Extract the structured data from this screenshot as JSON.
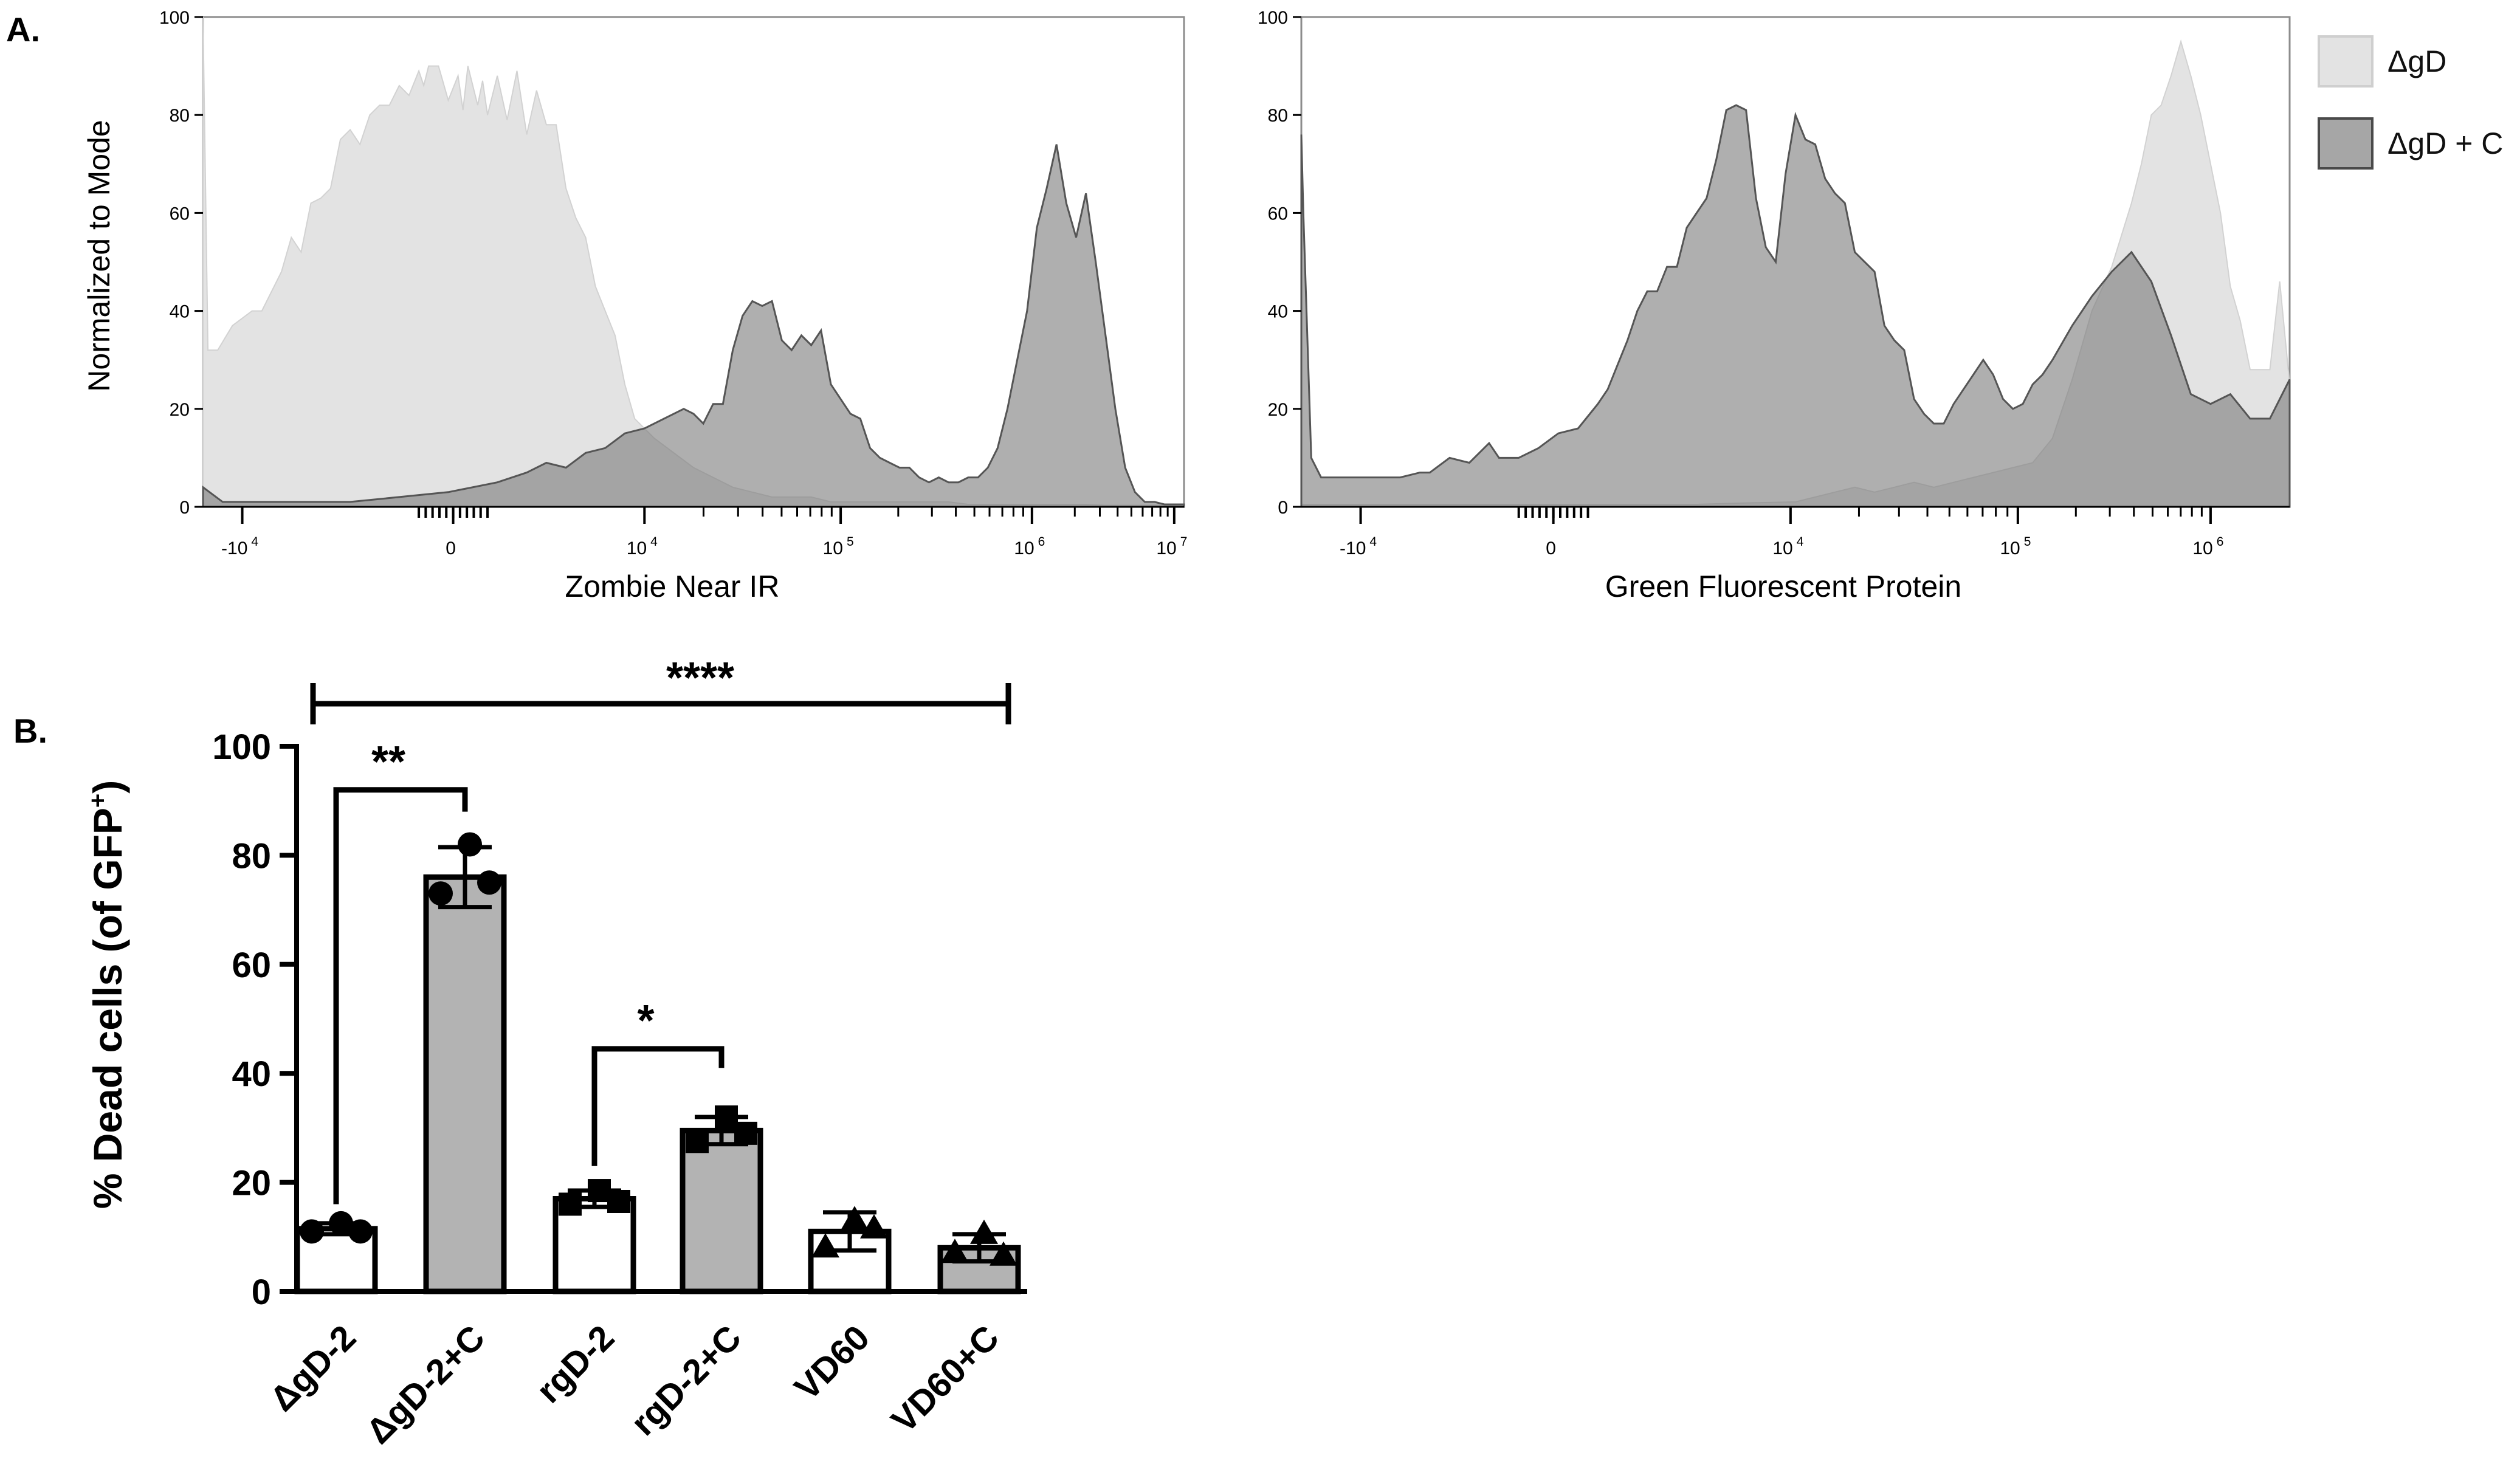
{
  "panel_labels": {
    "a": "A.",
    "b": "B."
  },
  "legend": [
    {
      "label": "ΔgD",
      "color": "#e3e3e3"
    },
    {
      "label": "ΔgD + C",
      "color": "#a6a6a6"
    }
  ],
  "chart_data": [
    {
      "type": "area",
      "title": "",
      "xlabel": "Zombie  Near IR",
      "ylabel": "Normalized to Mode",
      "ylim": [
        0,
        100
      ],
      "y_ticks": [
        "0",
        "20",
        "40",
        "60",
        "80",
        "100"
      ],
      "x_ticks": [
        {
          "base": "-10",
          "exp": "4",
          "pos": 0.04
        },
        {
          "base": "0",
          "exp": "",
          "pos": 0.255
        },
        {
          "base": "10",
          "exp": "4",
          "pos": 0.45
        },
        {
          "base": "10",
          "exp": "5",
          "pos": 0.65
        },
        {
          "base": "10",
          "exp": "6",
          "pos": 0.845
        },
        {
          "base": "10",
          "exp": "7",
          "pos": 0.99
        }
      ],
      "x_scale": "biexponential, axis positions 0–1",
      "series": [
        {
          "name": "ΔgD",
          "x": [
            0.0,
            0.005,
            0.015,
            0.03,
            0.05,
            0.06,
            0.08,
            0.09,
            0.1,
            0.11,
            0.12,
            0.13,
            0.14,
            0.15,
            0.16,
            0.17,
            0.18,
            0.19,
            0.2,
            0.21,
            0.22,
            0.225,
            0.23,
            0.24,
            0.25,
            0.26,
            0.265,
            0.27,
            0.28,
            0.285,
            0.29,
            0.3,
            0.31,
            0.32,
            0.33,
            0.34,
            0.35,
            0.36,
            0.37,
            0.38,
            0.39,
            0.4,
            0.41,
            0.42,
            0.43,
            0.44,
            0.46,
            0.48,
            0.5,
            0.52,
            0.54,
            0.56,
            0.58,
            0.6,
            0.62,
            0.64,
            0.66,
            0.68,
            0.7,
            0.72,
            0.74,
            0.76,
            0.78,
            0.8,
            0.82,
            0.84,
            0.86,
            0.88,
            0.9,
            0.92,
            0.94,
            0.96,
            0.98,
            1.0
          ],
          "y": [
            100,
            32,
            32,
            37,
            40,
            40,
            48,
            55,
            52,
            62,
            63,
            65,
            75,
            77,
            74,
            80,
            82,
            82,
            86,
            84,
            89,
            86,
            90,
            90,
            83,
            88,
            81,
            90,
            82,
            87,
            80,
            88,
            79,
            89,
            76,
            85,
            78,
            78,
            65,
            59,
            55,
            45,
            40,
            35,
            25,
            18,
            14,
            11,
            8,
            6,
            4,
            3,
            2,
            2,
            2,
            1,
            1,
            1,
            1,
            1,
            1,
            1,
            0.5,
            0.5,
            0.5,
            0.5,
            0.5,
            0.5,
            0.5,
            0.3,
            0.3,
            0.3,
            0.3,
            0.3
          ]
        },
        {
          "name": "ΔgD + C",
          "x": [
            0.0,
            0.02,
            0.05,
            0.1,
            0.15,
            0.2,
            0.25,
            0.3,
            0.33,
            0.35,
            0.37,
            0.39,
            0.41,
            0.43,
            0.45,
            0.47,
            0.49,
            0.5,
            0.51,
            0.52,
            0.53,
            0.54,
            0.55,
            0.56,
            0.57,
            0.58,
            0.59,
            0.6,
            0.61,
            0.62,
            0.63,
            0.64,
            0.65,
            0.66,
            0.67,
            0.68,
            0.69,
            0.7,
            0.71,
            0.72,
            0.73,
            0.74,
            0.75,
            0.76,
            0.77,
            0.78,
            0.79,
            0.8,
            0.81,
            0.82,
            0.83,
            0.84,
            0.85,
            0.86,
            0.87,
            0.88,
            0.89,
            0.9,
            0.91,
            0.92,
            0.93,
            0.94,
            0.95,
            0.96,
            0.97,
            0.98,
            0.99,
            1.0
          ],
          "y": [
            4,
            1,
            1,
            1,
            1,
            2,
            3,
            5,
            7,
            9,
            8,
            11,
            12,
            15,
            16,
            18,
            20,
            19,
            17,
            21,
            21,
            32,
            39,
            42,
            41,
            42,
            34,
            32,
            35,
            33,
            36,
            25,
            22,
            19,
            18,
            12,
            10,
            9,
            8,
            8,
            6,
            5,
            6,
            5,
            5,
            6,
            6,
            8,
            12,
            20,
            30,
            40,
            57,
            65,
            74,
            62,
            55,
            64,
            50,
            35,
            20,
            8,
            3,
            1,
            1,
            0.5,
            0.5,
            0.5
          ]
        }
      ]
    },
    {
      "type": "area",
      "title": "",
      "xlabel": "Green Fluorescent Protein",
      "ylabel": "",
      "ylim": [
        0,
        100
      ],
      "y_ticks": [
        "0",
        "20",
        "40",
        "60",
        "80",
        "100"
      ],
      "x_ticks": [
        {
          "base": "-10",
          "exp": "4",
          "pos": 0.06
        },
        {
          "base": "0",
          "exp": "",
          "pos": 0.255
        },
        {
          "base": "10",
          "exp": "4",
          "pos": 0.495
        },
        {
          "base": "10",
          "exp": "5",
          "pos": 0.725
        },
        {
          "base": "10",
          "exp": "6",
          "pos": 0.92
        }
      ],
      "x_scale": "biexponential, axis positions 0–1",
      "series": [
        {
          "name": "ΔgD",
          "x": [
            0.0,
            0.1,
            0.2,
            0.3,
            0.4,
            0.45,
            0.5,
            0.52,
            0.54,
            0.56,
            0.58,
            0.6,
            0.62,
            0.64,
            0.66,
            0.68,
            0.7,
            0.72,
            0.74,
            0.76,
            0.78,
            0.8,
            0.82,
            0.84,
            0.85,
            0.86,
            0.87,
            0.88,
            0.89,
            0.9,
            0.91,
            0.92,
            0.93,
            0.94,
            0.95,
            0.96,
            0.97,
            0.98,
            0.99,
            1.0
          ],
          "y": [
            0.5,
            0.5,
            0.5,
            0.5,
            0.5,
            0.8,
            1,
            2,
            3,
            4,
            3,
            4,
            5,
            4,
            5,
            6,
            7,
            8,
            9,
            14,
            26,
            40,
            49,
            62,
            70,
            80,
            82,
            88,
            95,
            88,
            80,
            70,
            60,
            45,
            38,
            28,
            28,
            28,
            46,
            25
          ]
        },
        {
          "name": "ΔgD + C",
          "x": [
            0.0,
            0.002,
            0.01,
            0.02,
            0.03,
            0.05,
            0.07,
            0.1,
            0.12,
            0.13,
            0.15,
            0.17,
            0.19,
            0.2,
            0.22,
            0.24,
            0.26,
            0.28,
            0.3,
            0.31,
            0.32,
            0.33,
            0.34,
            0.35,
            0.36,
            0.37,
            0.38,
            0.39,
            0.4,
            0.41,
            0.42,
            0.43,
            0.44,
            0.45,
            0.46,
            0.47,
            0.48,
            0.49,
            0.5,
            0.51,
            0.52,
            0.53,
            0.54,
            0.55,
            0.56,
            0.57,
            0.58,
            0.59,
            0.6,
            0.61,
            0.62,
            0.63,
            0.64,
            0.65,
            0.66,
            0.67,
            0.68,
            0.69,
            0.7,
            0.71,
            0.72,
            0.73,
            0.74,
            0.75,
            0.76,
            0.78,
            0.8,
            0.82,
            0.84,
            0.86,
            0.88,
            0.9,
            0.92,
            0.94,
            0.96,
            0.98,
            1.0
          ],
          "y": [
            76,
            60,
            10,
            6,
            6,
            6,
            6,
            6,
            7,
            7,
            10,
            9,
            13,
            10,
            10,
            12,
            15,
            16,
            21,
            24,
            29,
            34,
            40,
            44,
            44,
            49,
            49,
            57,
            60,
            63,
            71,
            81,
            82,
            81,
            63,
            53,
            50,
            68,
            80,
            75,
            74,
            67,
            64,
            62,
            52,
            50,
            48,
            37,
            34,
            32,
            22,
            19,
            17,
            17,
            21,
            24,
            27,
            30,
            27,
            22,
            20,
            21,
            25,
            27,
            30,
            37,
            43,
            48,
            52,
            46,
            35,
            23,
            21,
            23,
            18,
            18,
            26
          ]
        }
      ]
    },
    {
      "type": "bar",
      "title": "",
      "xlabel": "",
      "ylabel": "% Dead cells (of GFP",
      "ylabel_sup": "+",
      "ylabel_close": ")",
      "ylim": [
        0,
        100
      ],
      "y_ticks": [
        "0",
        "20",
        "40",
        "60",
        "80",
        "100"
      ],
      "categories": [
        "ΔgD-2",
        "ΔgD-2+C",
        "rgD-2",
        "rgD-2+C",
        "VD60",
        "VD60+C"
      ],
      "values": [
        11.5,
        76,
        17,
        29.5,
        11,
        8
      ],
      "error": [
        1,
        5.5,
        1.5,
        2.5,
        3.5,
        2.5
      ],
      "bar_fill": [
        "#ffffff",
        "#b3b3b3",
        "#ffffff",
        "#b3b3b3",
        "#ffffff",
        "#b3b3b3"
      ],
      "markers": [
        "circle",
        "circle",
        "square",
        "square",
        "triangle",
        "triangle"
      ],
      "points": [
        [
          12.5,
          11,
          11
        ],
        [
          82,
          73,
          75
        ],
        [
          18.5,
          16,
          16.5
        ],
        [
          32,
          27.5,
          29
        ],
        [
          13,
          8,
          11.5
        ],
        [
          10.5,
          7,
          6.5
        ]
      ],
      "significance": [
        {
          "from": 0,
          "to": 5,
          "label": "****"
        },
        {
          "from": 0,
          "to": 1,
          "label": "**"
        },
        {
          "from": 2,
          "to": 3,
          "label": "*"
        }
      ]
    }
  ]
}
